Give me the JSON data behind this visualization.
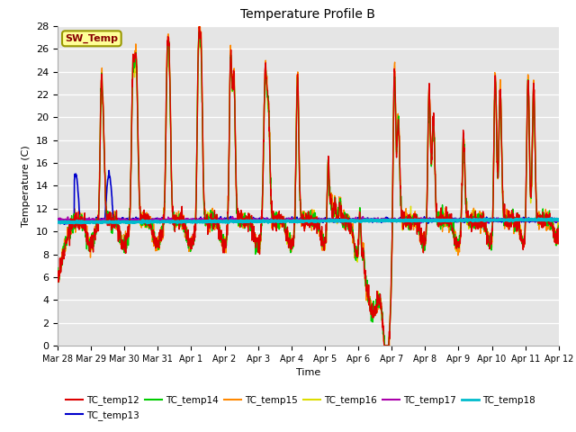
{
  "title": "Temperature Profile B",
  "ylabel": "Temperature (C)",
  "xlabel": "Time",
  "ylim": [
    0,
    28
  ],
  "yticks": [
    0,
    2,
    4,
    6,
    8,
    10,
    12,
    14,
    16,
    18,
    20,
    22,
    24,
    26,
    28
  ],
  "background_color": "#e5e5e5",
  "series_order": [
    "TC_temp16",
    "TC_temp15",
    "TC_temp14",
    "TC_temp12",
    "TC_temp13",
    "TC_temp17",
    "TC_temp18"
  ],
  "series": {
    "TC_temp12": {
      "color": "#dd0000",
      "lw": 1.0,
      "zorder": 6
    },
    "TC_temp13": {
      "color": "#0000cc",
      "lw": 1.2,
      "zorder": 4
    },
    "TC_temp14": {
      "color": "#00cc00",
      "lw": 1.0,
      "zorder": 5
    },
    "TC_temp15": {
      "color": "#ff8800",
      "lw": 1.0,
      "zorder": 3
    },
    "TC_temp16": {
      "color": "#dddd00",
      "lw": 1.0,
      "zorder": 2
    },
    "TC_temp17": {
      "color": "#aa00aa",
      "lw": 1.2,
      "zorder": 4
    },
    "TC_temp18": {
      "color": "#00bbcc",
      "lw": 2.0,
      "zorder": 7
    }
  },
  "sw_temp_box": {
    "text": "SW_Temp",
    "facecolor": "#ffff99",
    "edgecolor": "#999900",
    "textcolor": "#880000"
  },
  "x_tick_labels": [
    "Mar 28",
    "Mar 29",
    "Mar 30",
    "Mar 31",
    "Apr 1",
    "Apr 2",
    "Apr 3",
    "Apr 4",
    "Apr 5",
    "Apr 6",
    "Apr 7",
    "Apr 8",
    "Apr 9",
    "Apr 10",
    "Apr 11",
    "Apr 12"
  ],
  "legend_colors": {
    "TC_temp12": "#dd0000",
    "TC_temp13": "#0000cc",
    "TC_temp14": "#00cc00",
    "TC_temp15": "#ff8800",
    "TC_temp16": "#dddd00",
    "TC_temp17": "#aa00aa",
    "TC_temp18": "#00bbcc"
  }
}
